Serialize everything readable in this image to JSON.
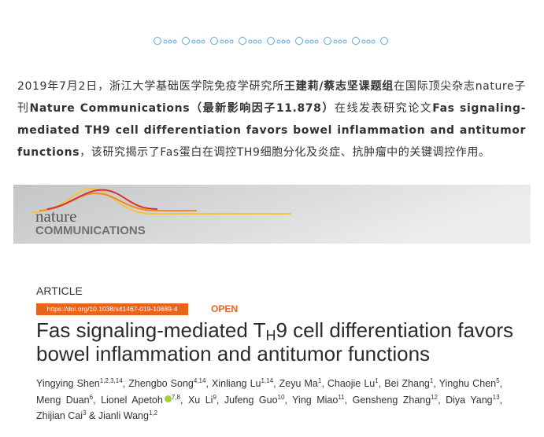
{
  "intro": {
    "segments": [
      "2019年7月2日，浙江大学基础医学院免疫学研究所",
      "王建莉/蔡志坚课题组",
      "在国际顶尖杂志nature子刊",
      "Nature Communications（最新影响因子11.878）",
      "在线发表研究论文",
      "Fas signaling-mediated TH9 cell differentiation favors bowel inflammation and antitumor functions",
      "，该研究揭示了Fas蛋白在调控TH9细胞分化及炎症、抗肿瘤中的关键调控作用。"
    ]
  },
  "banner": {
    "brand_top": "nature",
    "brand_bottom": "COMMUNICATIONS"
  },
  "article": {
    "kind": "ARTICLE",
    "doi": "https://doi.org/10.1038/s41467-019-10889-4",
    "access": "OPEN",
    "title": {
      "before": "Fas signaling-mediated T",
      "sub": "H",
      "after": "9 cell differentiation favors bowel inflammation and antitumor functions"
    },
    "authors": [
      {
        "name": "Yingying Shen",
        "affil": "1,2,3,14",
        "sep": ", "
      },
      {
        "name": "Zhengbo Song",
        "affil": "4,14",
        "sep": ", "
      },
      {
        "name": "Xinliang Lu",
        "affil": "1,14",
        "sep": ", "
      },
      {
        "name": "Zeyu Ma",
        "affil": "1",
        "sep": ", "
      },
      {
        "name": "Chaojie Lu",
        "affil": "1",
        "sep": ", "
      },
      {
        "name": "Bei Zhang",
        "affil": "1",
        "sep": ", "
      },
      {
        "name": "Yinghu Chen",
        "affil": "5",
        "sep": ", "
      },
      {
        "name": "Meng Duan",
        "affil": "6",
        "sep": ", "
      },
      {
        "name": "Lionel Apetoh",
        "affil": "7,8",
        "sep": ", ",
        "orcid": true
      },
      {
        "name": "Xu Li",
        "affil": "9",
        "sep": ", "
      },
      {
        "name": "Jufeng Guo",
        "affil": "10",
        "sep": ", "
      },
      {
        "name": "Ying Miao",
        "affil": "11",
        "sep": ", "
      },
      {
        "name": "Gensheng Zhang",
        "affil": "12",
        "sep": ", "
      },
      {
        "name": "Diya Yang",
        "affil": "13",
        "sep": ", "
      },
      {
        "name": "Zhijian Cai",
        "affil": "3",
        "sep": " & "
      },
      {
        "name": "Jianli Wang",
        "affil": "1,2"
      }
    ]
  }
}
